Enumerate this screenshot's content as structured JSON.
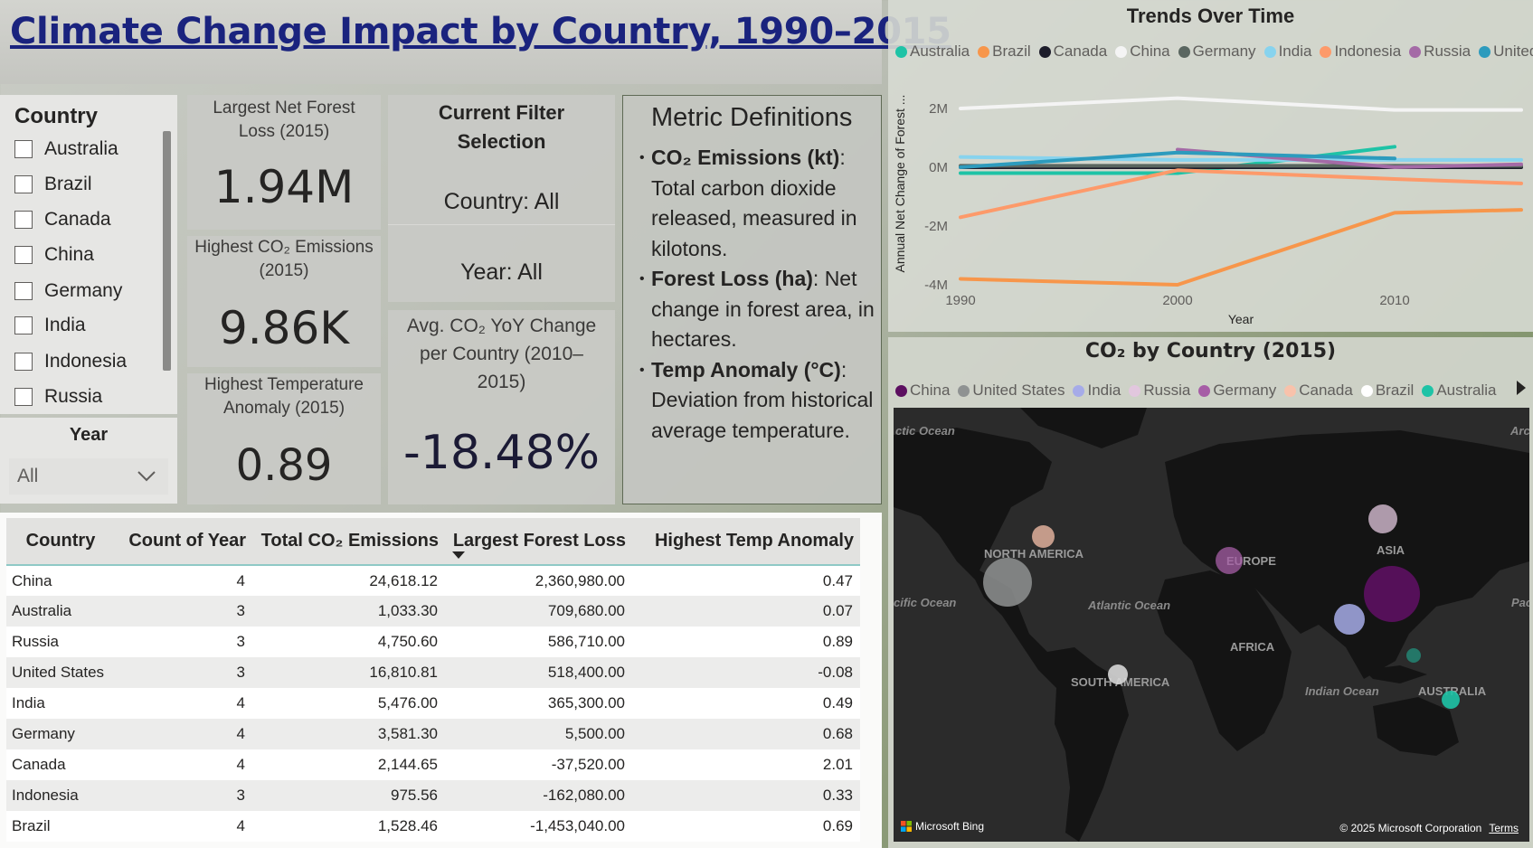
{
  "title": "Climate Change Impact by Country, 1990–2015",
  "country_slicer": {
    "header": "Country",
    "items": [
      "Australia",
      "Brazil",
      "Canada",
      "China",
      "Germany",
      "India",
      "Indonesia",
      "Russia"
    ]
  },
  "year_slicer": {
    "header": "Year",
    "value": "All"
  },
  "kpis": {
    "forest_loss": {
      "label": "Largest Net Forest Loss (2015)",
      "value": "1.94M"
    },
    "co2": {
      "label": "Highest CO₂ Emissions (2015)",
      "value": "9.86K"
    },
    "temp": {
      "label": "Highest Temperature Anomaly (2015)",
      "value": "0.89"
    }
  },
  "filter_card": {
    "header": "Current Filter Selection",
    "country": "Country: All",
    "year": "Year: All"
  },
  "yoy_card": {
    "label": "Avg. CO₂ YoY Change per Country (2010–2015)",
    "value": "-18.48%"
  },
  "metric_definitions": {
    "header": "Metric Definitions",
    "items": [
      {
        "term": "CO₂ Emissions (kt)",
        "desc": ": Total carbon dioxide released, measured in kilotons."
      },
      {
        "term": "Forest Loss (ha)",
        "desc": ": Net change in forest area, in hectares."
      },
      {
        "term": "Temp Anomaly (°C)",
        "desc": ": Deviation from historical average temperature."
      }
    ]
  },
  "table": {
    "columns": [
      "Country",
      "Count of Year",
      "Total CO₂ Emissions",
      "Largest Forest Loss",
      "Highest Temp Anomaly"
    ],
    "rows": [
      [
        "China",
        "4",
        "24,618.12",
        "2,360,980.00",
        "0.47"
      ],
      [
        "Australia",
        "3",
        "1,033.30",
        "709,680.00",
        "0.07"
      ],
      [
        "Russia",
        "3",
        "4,750.60",
        "586,710.00",
        "0.89"
      ],
      [
        "United States",
        "3",
        "16,810.81",
        "518,400.00",
        "-0.08"
      ],
      [
        "India",
        "4",
        "5,476.00",
        "365,300.00",
        "0.49"
      ],
      [
        "Germany",
        "4",
        "3,581.30",
        "5,500.00",
        "0.68"
      ],
      [
        "Canada",
        "4",
        "2,144.65",
        "-37,520.00",
        "2.01"
      ],
      [
        "Indonesia",
        "3",
        "975.56",
        "-162,080.00",
        "0.33"
      ],
      [
        "Brazil",
        "4",
        "1,528.46",
        "-1,453,040.00",
        "0.69"
      ]
    ]
  },
  "trends": {
    "title": "Trends Over Time",
    "legend": [
      {
        "name": "Australia",
        "color": "#1ec3a6"
      },
      {
        "name": "Brazil",
        "color": "#f7964b"
      },
      {
        "name": "Canada",
        "color": "#1d1d2b"
      },
      {
        "name": "China",
        "color": "#f4f4f4"
      },
      {
        "name": "Germany",
        "color": "#5a6660"
      },
      {
        "name": "India",
        "color": "#87d3ee"
      },
      {
        "name": "Indonesia",
        "color": "#fd9a6a"
      },
      {
        "name": "Russia",
        "color": "#a46aa6"
      },
      {
        "name": "United St...",
        "color": "#2d9bbd"
      }
    ]
  },
  "chart_data": [
    {
      "type": "line",
      "title": "Trends Over Time",
      "xlabel": "Year",
      "ylabel": "Annual Net Change of Forest ...",
      "x": [
        1990,
        2000,
        2010,
        2015
      ],
      "xticks": [
        "1990",
        "2000",
        "2010"
      ],
      "yticks": [
        "2M",
        "0M",
        "-2M",
        "-4M"
      ],
      "ylim": [
        -4000000,
        2600000
      ],
      "xlim": [
        1990,
        2015
      ],
      "series": [
        {
          "name": "Australia",
          "values": [
            -200000,
            -200000,
            700000,
            null
          ]
        },
        {
          "name": "Brazil",
          "values": [
            -3800000,
            -4000000,
            -1550000,
            -1450000
          ]
        },
        {
          "name": "Canada",
          "values": [
            0,
            0,
            0,
            0
          ]
        },
        {
          "name": "China",
          "values": [
            2000000,
            2350000,
            1950000,
            1950000
          ]
        },
        {
          "name": "Germany",
          "values": [
            50000,
            50000,
            50000,
            50000
          ]
        },
        {
          "name": "India",
          "values": [
            350000,
            250000,
            250000,
            250000
          ]
        },
        {
          "name": "Indonesia",
          "values": [
            -1700000,
            -100000,
            -400000,
            -550000
          ]
        },
        {
          "name": "Russia",
          "values": [
            null,
            600000,
            0,
            100000
          ]
        },
        {
          "name": "United St...",
          "values": [
            0,
            500000,
            300000,
            null
          ]
        }
      ]
    }
  ],
  "map": {
    "title": "CO₂ by Country (2015)",
    "legend": [
      {
        "name": "China",
        "color": "#5c0f60"
      },
      {
        "name": "United States",
        "color": "#8f9292"
      },
      {
        "name": "India",
        "color": "#a6abe8"
      },
      {
        "name": "Russia",
        "color": "#e2c7de"
      },
      {
        "name": "Germany",
        "color": "#a65da6"
      },
      {
        "name": "Canada",
        "color": "#f8c2ab"
      },
      {
        "name": "Brazil",
        "color": "#ffffff"
      },
      {
        "name": "Australia",
        "color": "#1ec3a6"
      }
    ],
    "ocean_labels": [
      "ctic Ocean",
      "Arc",
      "cific Ocean",
      "Atlantic Ocean",
      "Pac",
      "Indian Ocean"
    ],
    "continent_labels": [
      "NORTH AMERICA",
      "EUROPE",
      "ASIA",
      "AFRICA",
      "SOUTH AMERICA",
      "AUSTRALIA"
    ],
    "bing": "Microsoft Bing",
    "copyright": "© 2025 Microsoft Corporation",
    "terms": "Terms"
  }
}
